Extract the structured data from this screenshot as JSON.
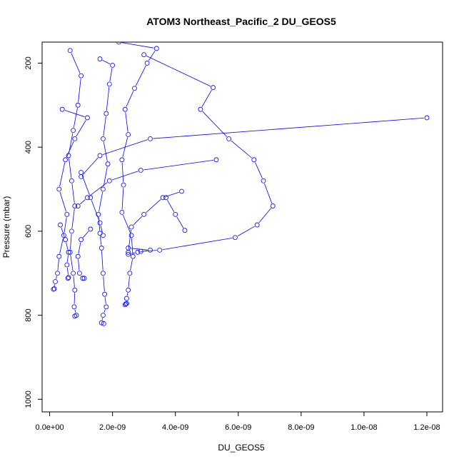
{
  "chart_data": {
    "type": "scatter",
    "title": "ATOM3 Northeast_Pacific_2 DU_GEOS5",
    "xlabel": "DU_GEOS5",
    "ylabel": "Pressure (mbar)",
    "xlim": [
      -2.4e-10,
      1.25e-08
    ],
    "ylim": [
      1030,
      150
    ],
    "y_reversed": true,
    "x_ticks": [
      0,
      2e-09,
      4e-09,
      6e-09,
      8e-09,
      1e-08,
      1.2e-08
    ],
    "x_tick_labels": [
      "0.0e+00",
      "2.0e-09",
      "4.0e-09",
      "6.0e-09",
      "8.0e-09",
      "1.0e-08",
      "1.2e-08"
    ],
    "y_ticks": [
      200,
      400,
      600,
      800,
      1000
    ],
    "y_tick_labels": [
      "200",
      "400",
      "600",
      "800",
      "1000"
    ],
    "color": "#0000ff",
    "marker": "open-circle",
    "grid": false,
    "series": [
      {
        "x": [
          2.2e-09,
          3.4e-09,
          3.1e-09,
          2.7e-09,
          2.4e-09,
          2.5e-09,
          2.3e-09,
          2.35e-09,
          2.3e-09,
          2.6e-09,
          2.65e-09,
          2.55e-09,
          2.5e-09,
          2.45e-09,
          2.4e-09,
          2.42e-09,
          2.45e-09
        ],
        "y": [
          150,
          165,
          200,
          260,
          310,
          370,
          430,
          490,
          555,
          610,
          660,
          700,
          740,
          760,
          775,
          773,
          772
        ]
      },
      {
        "x": [
          3e-09,
          5.2e-09,
          4.8e-09,
          5.7e-09,
          6.5e-09,
          6.8e-09,
          7.1e-09,
          6.6e-09,
          5.9e-09,
          3.5e-09,
          2.9e-09
        ],
        "y": [
          180,
          258,
          310,
          380,
          430,
          480,
          540,
          585,
          615,
          645,
          648
        ]
      },
      {
        "x": [
          1.6e-09,
          2e-09,
          1.9e-09,
          1.8e-09,
          1.7e-09,
          1.85e-09,
          1.7e-09,
          1.55e-09,
          1.6e-09,
          1.65e-09,
          1.7e-09,
          1.75e-09,
          1.8e-09,
          1.7e-09,
          1.65e-09,
          1.72e-09
        ],
        "y": [
          190,
          205,
          250,
          320,
          380,
          440,
          500,
          560,
          605,
          640,
          700,
          750,
          780,
          800,
          818,
          820
        ]
      },
      {
        "x": [
          6.5e-10,
          1e-09,
          9e-10,
          7.5e-10,
          6e-10,
          7e-10,
          8e-10,
          7e-10,
          6.5e-10,
          7.5e-10,
          8e-10,
          7.8e-10,
          8.5e-10,
          8e-10
        ],
        "y": [
          170,
          230,
          300,
          360,
          420,
          480,
          540,
          600,
          650,
          700,
          740,
          780,
          800,
          802
        ]
      },
      {
        "x": [
          4e-10,
          1.2e-09,
          8e-10,
          5e-10,
          3e-10,
          5.5e-10,
          4.5e-10,
          3e-10,
          2.5e-10,
          1.8e-10,
          1.2e-10,
          1.5e-10
        ],
        "y": [
          310,
          330,
          380,
          430,
          500,
          560,
          610,
          660,
          700,
          720,
          738,
          737
        ]
      },
      {
        "x": [
          1.2e-08,
          3.2e-09,
          1.6e-09,
          1e-09
        ],
        "y": [
          330,
          380,
          420,
          470
        ]
      },
      {
        "x": [
          5.3e-09,
          2.9e-09,
          1.9e-09,
          1.2e-09,
          9e-10
        ],
        "y": [
          430,
          455,
          480,
          520,
          540
        ]
      },
      {
        "x": [
          4.2e-09,
          3.6e-09,
          3e-09,
          2.6e-09,
          2.5e-09
        ],
        "y": [
          505,
          520,
          560,
          590,
          650
        ]
      },
      {
        "x": [
          1.3e-09,
          1e-09,
          9e-10,
          9.5e-10,
          1.05e-09,
          1.1e-09
        ],
        "y": [
          595,
          620,
          660,
          700,
          712,
          712
        ]
      },
      {
        "x": [
          3.4e-10,
          5e-10,
          6e-10,
          5.5e-10,
          6e-10,
          5.8e-10
        ],
        "y": [
          585,
          620,
          650,
          680,
          710,
          712
        ]
      },
      {
        "x": [
          2.5e-09,
          3.2e-09,
          2.8e-09,
          2.5e-09
        ],
        "y": [
          640,
          645,
          650,
          655
        ]
      },
      {
        "x": [
          1e-09,
          1.3e-09,
          1.6e-09,
          1.7e-09
        ],
        "y": [
          460,
          520,
          580,
          610
        ]
      },
      {
        "x": [
          3.7e-09,
          4e-09,
          4.3e-09
        ],
        "y": [
          520,
          560,
          598
        ]
      }
    ]
  }
}
